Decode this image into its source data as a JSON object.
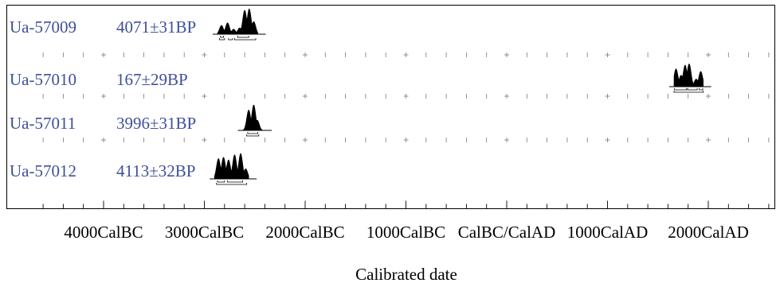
{
  "chart_data": {
    "type": "multiplot",
    "subtype": "radiocarbon calibrated probability distributions",
    "xlabel": "Calibrated date",
    "x_range": [
      -4000,
      2000
    ],
    "tick_labels": [
      "4000CalBC",
      "3000CalBC",
      "2000CalBC",
      "1000CalBC",
      "CalBC/CalAD",
      "1000CalAD",
      "2000CalAD"
    ],
    "tick_values": [
      -4000,
      -3000,
      -2000,
      -1000,
      0,
      1000,
      2000
    ],
    "minor_tick_step": 200,
    "samples": [
      {
        "lab_code": "Ua-57009",
        "age": "4071±31BP",
        "range": [
          -2870,
          -2470
        ],
        "peaks": [
          [
            -2830,
            0.35
          ],
          [
            -2770,
            0.45
          ],
          [
            -2710,
            0.2
          ],
          [
            -2650,
            0.25
          ],
          [
            -2600,
            0.95
          ],
          [
            -2555,
            1.0
          ],
          [
            -2510,
            0.5
          ]
        ],
        "sigma1": [
          [
            -2840,
            -2810
          ],
          [
            -2670,
            -2560
          ]
        ],
        "sigma2": [
          [
            -2850,
            -2800
          ],
          [
            -2760,
            -2720
          ],
          [
            -2700,
            -2490
          ]
        ]
      },
      {
        "lab_code": "Ua-57010",
        "age": "167±29BP",
        "range": [
          1660,
          1950
        ],
        "peaks": [
          [
            1680,
            0.7
          ],
          [
            1730,
            0.45
          ],
          [
            1770,
            0.85
          ],
          [
            1810,
            0.9
          ],
          [
            1880,
            0.3
          ],
          [
            1925,
            0.6
          ]
        ],
        "sigma1": [
          [
            1665,
            1785
          ],
          [
            1795,
            1890
          ],
          [
            1910,
            1945
          ]
        ],
        "sigma2": [
          [
            1660,
            1950
          ]
        ]
      },
      {
        "lab_code": "Ua-57011",
        "age": "3996±31BP",
        "range": [
          -2620,
          -2410
        ],
        "peaks": [
          [
            -2560,
            0.8
          ],
          [
            -2510,
            1.0
          ],
          [
            -2475,
            0.4
          ]
        ],
        "sigma1": [
          [
            -2570,
            -2470
          ]
        ],
        "sigma2": [
          [
            -2580,
            -2460
          ]
        ]
      },
      {
        "lab_code": "Ua-57012",
        "age": "4113±32BP",
        "range": [
          -2900,
          -2560
        ],
        "peaks": [
          [
            -2860,
            0.8
          ],
          [
            -2810,
            0.85
          ],
          [
            -2760,
            0.75
          ],
          [
            -2700,
            0.95
          ],
          [
            -2640,
            1.0
          ],
          [
            -2590,
            0.4
          ]
        ],
        "sigma1": [
          [
            -2870,
            -2800
          ],
          [
            -2770,
            -2620
          ]
        ],
        "sigma2": [
          [
            -2880,
            -2580
          ]
        ]
      }
    ]
  },
  "colors": {
    "label": "#3f4f9a",
    "distribution": "#000000",
    "axis": "#000000",
    "minor_tick": "#777777"
  }
}
